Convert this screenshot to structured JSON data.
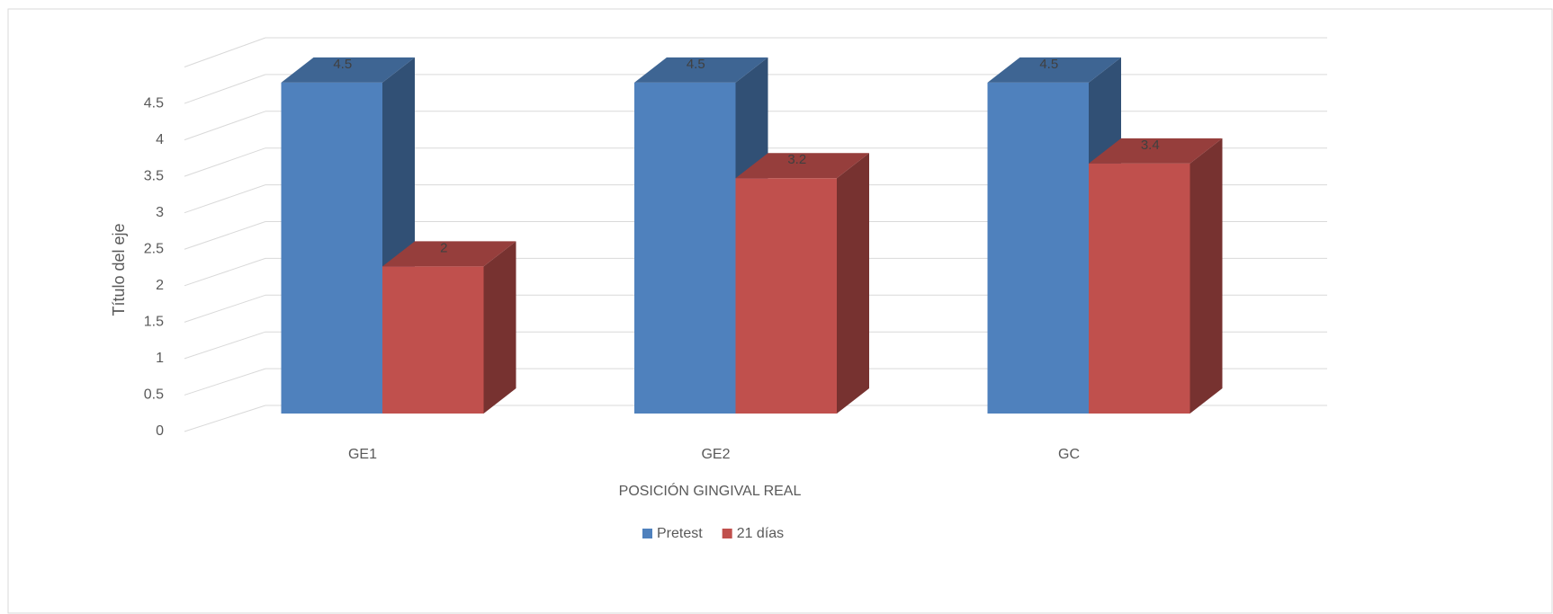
{
  "chart_data": {
    "type": "bar3d",
    "categories": [
      "GE1",
      "GE2",
      "GC"
    ],
    "series": [
      {
        "name": "Pretest",
        "color": "#4f81bd",
        "values": [
          4.5,
          4.5,
          4.5
        ]
      },
      {
        "name": "21 días",
        "color": "#c0504d",
        "values": [
          2,
          3.2,
          3.4
        ]
      }
    ],
    "ylim": [
      0,
      5
    ],
    "yticks": [
      0,
      0.5,
      1,
      1.5,
      2,
      2.5,
      3,
      3.5,
      4,
      4.5
    ],
    "y_axis_label": "Título del eje",
    "x_axis_label": "POSICIÓN GINGIVAL REAL",
    "grid": true,
    "legend": "bottom"
  }
}
